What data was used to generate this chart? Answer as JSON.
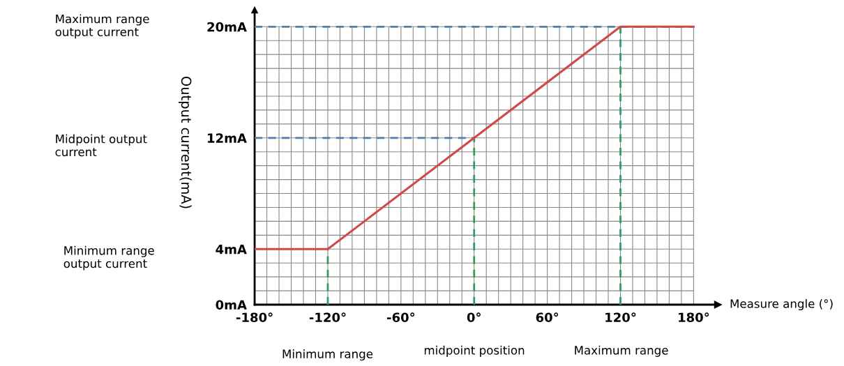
{
  "chart_data": {
    "type": "line",
    "xlabel": "Measure angle (°)",
    "ylabel": "Output current(mA)",
    "x": [
      -180,
      -120,
      120,
      180
    ],
    "series": [
      {
        "color": "#d04848",
        "values": [
          4,
          4,
          20,
          20
        ]
      }
    ],
    "xlim": [
      -180,
      200
    ],
    "ylim": [
      0,
      21.2
    ],
    "xticks": [
      {
        "value": -180,
        "label": "-180°"
      },
      {
        "value": -170,
        "label": null
      },
      {
        "value": -160,
        "label": null
      },
      {
        "value": -150,
        "label": null
      },
      {
        "value": -140,
        "label": null
      },
      {
        "value": -130,
        "label": null
      },
      {
        "value": -120,
        "label": "-120°"
      },
      {
        "value": -110,
        "label": null
      },
      {
        "value": -100,
        "label": null
      },
      {
        "value": -90,
        "label": null
      },
      {
        "value": -80,
        "label": null
      },
      {
        "value": -70,
        "label": null
      },
      {
        "value": -60,
        "label": "-60°"
      },
      {
        "value": -50,
        "label": null
      },
      {
        "value": -40,
        "label": null
      },
      {
        "value": -30,
        "label": null
      },
      {
        "value": -20,
        "label": null
      },
      {
        "value": -10,
        "label": null
      },
      {
        "value": 0,
        "label": "0°"
      },
      {
        "value": 10,
        "label": null
      },
      {
        "value": 20,
        "label": null
      },
      {
        "value": 30,
        "label": null
      },
      {
        "value": 40,
        "label": null
      },
      {
        "value": 50,
        "label": null
      },
      {
        "value": 60,
        "label": "60°"
      },
      {
        "value": 70,
        "label": null
      },
      {
        "value": 80,
        "label": null
      },
      {
        "value": 90,
        "label": null
      },
      {
        "value": 100,
        "label": null
      },
      {
        "value": 110,
        "label": null
      },
      {
        "value": 120,
        "label": "120°"
      },
      {
        "value": 130,
        "label": null
      },
      {
        "value": 140,
        "label": null
      },
      {
        "value": 150,
        "label": null
      },
      {
        "value": 160,
        "label": null
      },
      {
        "value": 170,
        "label": null
      },
      {
        "value": 180,
        "label": "180°"
      }
    ],
    "yticks": [
      {
        "value": 0,
        "label": "0mA"
      },
      {
        "value": 1,
        "label": null
      },
      {
        "value": 2,
        "label": null
      },
      {
        "value": 3,
        "label": null
      },
      {
        "value": 4,
        "label": "4mA"
      },
      {
        "value": 5,
        "label": null
      },
      {
        "value": 6,
        "label": null
      },
      {
        "value": 7,
        "label": null
      },
      {
        "value": 8,
        "label": null
      },
      {
        "value": 9,
        "label": null
      },
      {
        "value": 10,
        "label": null
      },
      {
        "value": 11,
        "label": null
      },
      {
        "value": 12,
        "label": "12mA"
      },
      {
        "value": 13,
        "label": null
      },
      {
        "value": 14,
        "label": null
      },
      {
        "value": 15,
        "label": null
      },
      {
        "value": 16,
        "label": null
      },
      {
        "value": 17,
        "label": null
      },
      {
        "value": 18,
        "label": null
      },
      {
        "value": 19,
        "label": null
      },
      {
        "value": 20,
        "label": "20mA"
      }
    ],
    "grid": true,
    "marker": "none",
    "line_style": "solid",
    "ref_lines": [
      {
        "axis": "y",
        "value": 20,
        "color": "#4f7fa8",
        "line_style": "dashed"
      },
      {
        "axis": "y",
        "value": 12,
        "color": "#4f7fa8",
        "line_style": "dashed"
      },
      {
        "axis": "x",
        "value": -120,
        "color": "#2e9e5e",
        "line_style": "dashed"
      },
      {
        "axis": "x",
        "value": 0,
        "color": "#2e9e5e",
        "line_style": "dashed"
      },
      {
        "axis": "x",
        "value": 120,
        "color": "#2e9e5e",
        "line_style": "dashed"
      }
    ],
    "annotations": [
      "Maximum range\noutput current",
      "Midpoint output\ncurrent",
      "Minimum range\noutput current",
      "Minimum range",
      "midpoint position",
      "Maximum range"
    ]
  }
}
